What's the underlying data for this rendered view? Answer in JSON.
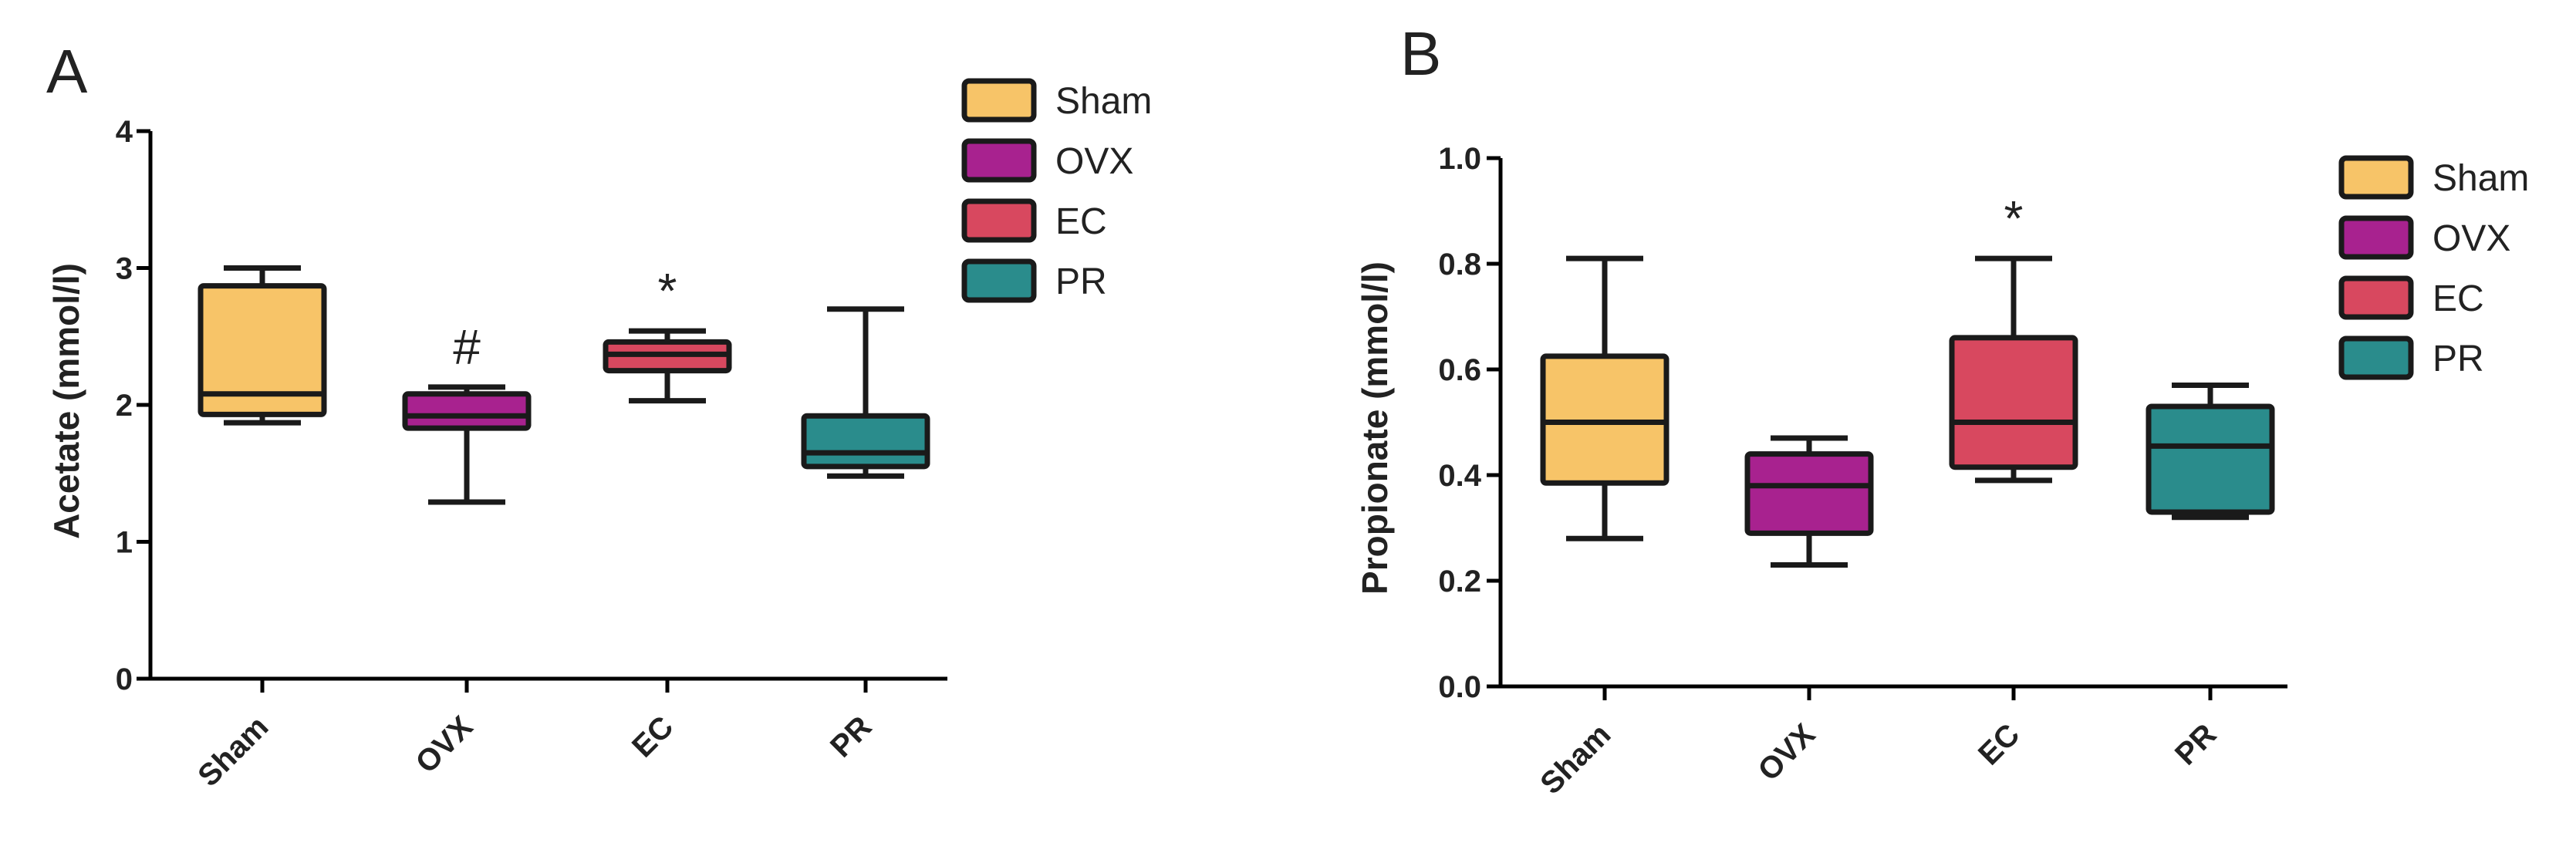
{
  "chart_data": [
    {
      "panel": "A",
      "type": "box",
      "title": "",
      "xlabel": "",
      "ylabel": "Acetate (mmol/l)",
      "ylim": [
        0,
        4
      ],
      "yticks": [
        "0",
        "1",
        "2",
        "3",
        "4"
      ],
      "categories": [
        "Sham",
        "OVX",
        "EC",
        "PR"
      ],
      "colors": [
        "#F7C468",
        "#A8228F",
        "#D8485F",
        "#2A8C8C"
      ],
      "boxes": [
        {
          "min": 1.87,
          "q1": 1.93,
          "median": 2.08,
          "q3": 2.87,
          "max": 3.0,
          "marker": ""
        },
        {
          "min": 1.29,
          "q1": 1.83,
          "median": 1.92,
          "q3": 2.08,
          "max": 2.13,
          "marker": "#"
        },
        {
          "min": 2.03,
          "q1": 2.25,
          "median": 2.37,
          "q3": 2.46,
          "max": 2.54,
          "marker": "*"
        },
        {
          "min": 1.48,
          "q1": 1.55,
          "median": 1.65,
          "q3": 1.92,
          "max": 2.7,
          "marker": ""
        }
      ],
      "legend": [
        "Sham",
        "OVX",
        "EC",
        "PR"
      ]
    },
    {
      "panel": "B",
      "type": "box",
      "title": "",
      "xlabel": "",
      "ylabel": "Propionate (mmol/l)",
      "ylim": [
        0,
        1
      ],
      "yticks": [
        "0.0",
        "0.2",
        "0.4",
        "0.6",
        "0.8",
        "1.0"
      ],
      "categories": [
        "Sham",
        "OVX",
        "EC",
        "PR"
      ],
      "colors": [
        "#F7C468",
        "#A8228F",
        "#D8485F",
        "#2A8C8C"
      ],
      "boxes": [
        {
          "min": 0.28,
          "q1": 0.385,
          "median": 0.5,
          "q3": 0.625,
          "max": 0.81,
          "marker": ""
        },
        {
          "min": 0.23,
          "q1": 0.29,
          "median": 0.38,
          "q3": 0.44,
          "max": 0.47,
          "marker": ""
        },
        {
          "min": 0.39,
          "q1": 0.415,
          "median": 0.5,
          "q3": 0.66,
          "max": 0.81,
          "marker": "*"
        },
        {
          "min": 0.32,
          "q1": 0.33,
          "median": 0.455,
          "q3": 0.53,
          "max": 0.57,
          "marker": ""
        }
      ],
      "legend": [
        "Sham",
        "OVX",
        "EC",
        "PR"
      ]
    }
  ]
}
